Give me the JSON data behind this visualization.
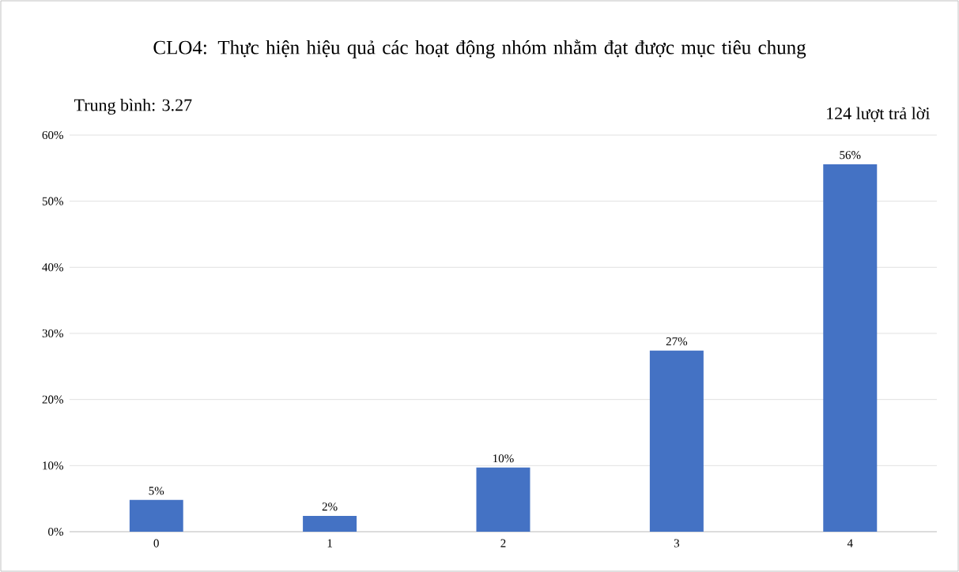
{
  "chart_data": {
    "type": "bar",
    "title": "CLO4: Thực hiện hiệu quả các hoạt động nhóm nhằm đạt được mục tiêu chung",
    "annotations": [
      "Trung bình: 3.27",
      "124 lượt trả lời"
    ],
    "categories": [
      "0",
      "1",
      "2",
      "3",
      "4"
    ],
    "values": [
      4.8,
      2.4,
      9.7,
      27.4,
      55.6
    ],
    "value_labels": [
      "5%",
      "2%",
      "10%",
      "27%",
      "56%"
    ],
    "color": "#4472c4",
    "ylim": [
      0,
      60
    ],
    "yticks": [
      {
        "value": 0,
        "label": "0%"
      },
      {
        "value": 10,
        "label": "10%"
      },
      {
        "value": 20,
        "label": "20%"
      },
      {
        "value": 30,
        "label": "30%"
      },
      {
        "value": 40,
        "label": "40%"
      },
      {
        "value": 50,
        "label": "50%"
      },
      {
        "value": 60,
        "label": "60%"
      }
    ],
    "grid": "y"
  }
}
